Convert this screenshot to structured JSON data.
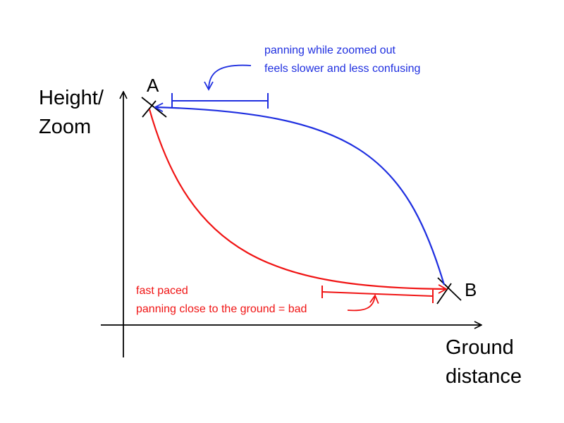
{
  "y_axis": {
    "label_lines": [
      "Height/",
      "Zoom"
    ]
  },
  "x_axis": {
    "label_lines": [
      "Ground",
      "distance"
    ]
  },
  "points": {
    "a": {
      "label": "A"
    },
    "b": {
      "label": "B"
    }
  },
  "paths": {
    "high_path": {
      "color": "#1f2fe0"
    },
    "low_path": {
      "color": "#f01414"
    }
  },
  "annotations": {
    "high": {
      "lines": [
        "panning while zoomed out",
        "feels slower and less confusing"
      ],
      "color": "#1f2fe0"
    },
    "low": {
      "lines": [
        "fast paced",
        "panning close to the ground = bad"
      ],
      "color": "#f01414"
    }
  },
  "axis_color": "#000000"
}
